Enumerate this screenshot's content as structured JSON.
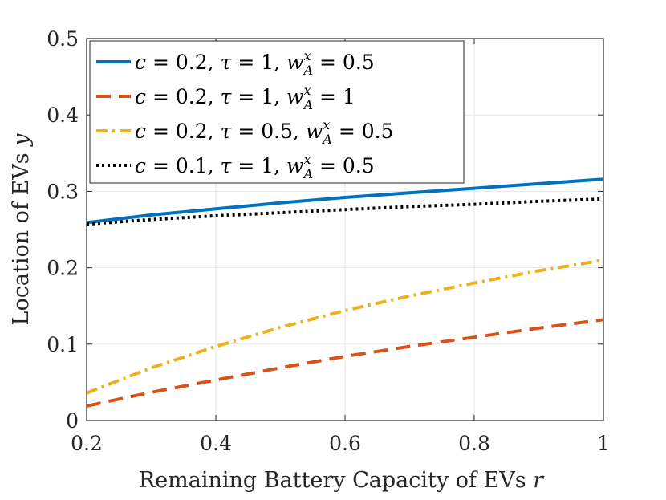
{
  "chart_data": {
    "type": "line",
    "title": "",
    "xlabel": "Remaining Battery Capacity of EVs",
    "xlabel_var": "r",
    "ylabel": "Location of EVs",
    "ylabel_var": "y",
    "xlim": [
      0.2,
      1
    ],
    "ylim": [
      0,
      0.5
    ],
    "grid": true,
    "legend_position": "top-left",
    "x_ticks": [
      {
        "value": 0.2,
        "label": "0.2"
      },
      {
        "value": 0.4,
        "label": "0.4"
      },
      {
        "value": 0.6,
        "label": "0.6"
      },
      {
        "value": 0.8,
        "label": "0.8"
      },
      {
        "value": 1,
        "label": "1"
      }
    ],
    "y_ticks": [
      {
        "value": 0,
        "label": "0"
      },
      {
        "value": 0.1,
        "label": "0.1"
      },
      {
        "value": 0.2,
        "label": "0.2"
      },
      {
        "value": 0.3,
        "label": "0.3"
      },
      {
        "value": 0.4,
        "label": "0.4"
      },
      {
        "value": 0.5,
        "label": "0.5"
      }
    ],
    "x": [
      0.2,
      0.3,
      0.4,
      0.5,
      0.6,
      0.7,
      0.8,
      0.9,
      1.0
    ],
    "series": [
      {
        "name": "c = 0.2, τ = 1, w_A^x = 0.5",
        "legend": {
          "c": "0.2",
          "tau": "1",
          "w": "0.5"
        },
        "color": "#0072BD",
        "dash": "solid",
        "values": [
          0.259,
          0.269,
          0.277,
          0.285,
          0.292,
          0.298,
          0.304,
          0.31,
          0.316
        ]
      },
      {
        "name": "c = 0.2, τ = 1, w_A^x = 1",
        "legend": {
          "c": "0.2",
          "tau": "1",
          "w": "1"
        },
        "color": "#D95319",
        "dash": "dashed",
        "values": [
          0.019,
          0.037,
          0.053,
          0.069,
          0.084,
          0.097,
          0.109,
          0.121,
          0.132
        ]
      },
      {
        "name": "c = 0.2, τ = 0.5, w_A^x = 0.5",
        "legend": {
          "c": "0.2",
          "tau": "0.5",
          "w": "0.5"
        },
        "color": "#EDB120",
        "dash": "dashdot",
        "values": [
          0.036,
          0.069,
          0.097,
          0.122,
          0.144,
          0.163,
          0.18,
          0.196,
          0.21
        ]
      },
      {
        "name": "c = 0.1, τ = 1, w_A^x = 0.5",
        "legend": {
          "c": "0.1",
          "tau": "1",
          "w": "0.5"
        },
        "color": "#000000",
        "dash": "dotted",
        "values": [
          0.257,
          0.263,
          0.268,
          0.272,
          0.276,
          0.28,
          0.283,
          0.287,
          0.29
        ]
      }
    ]
  }
}
